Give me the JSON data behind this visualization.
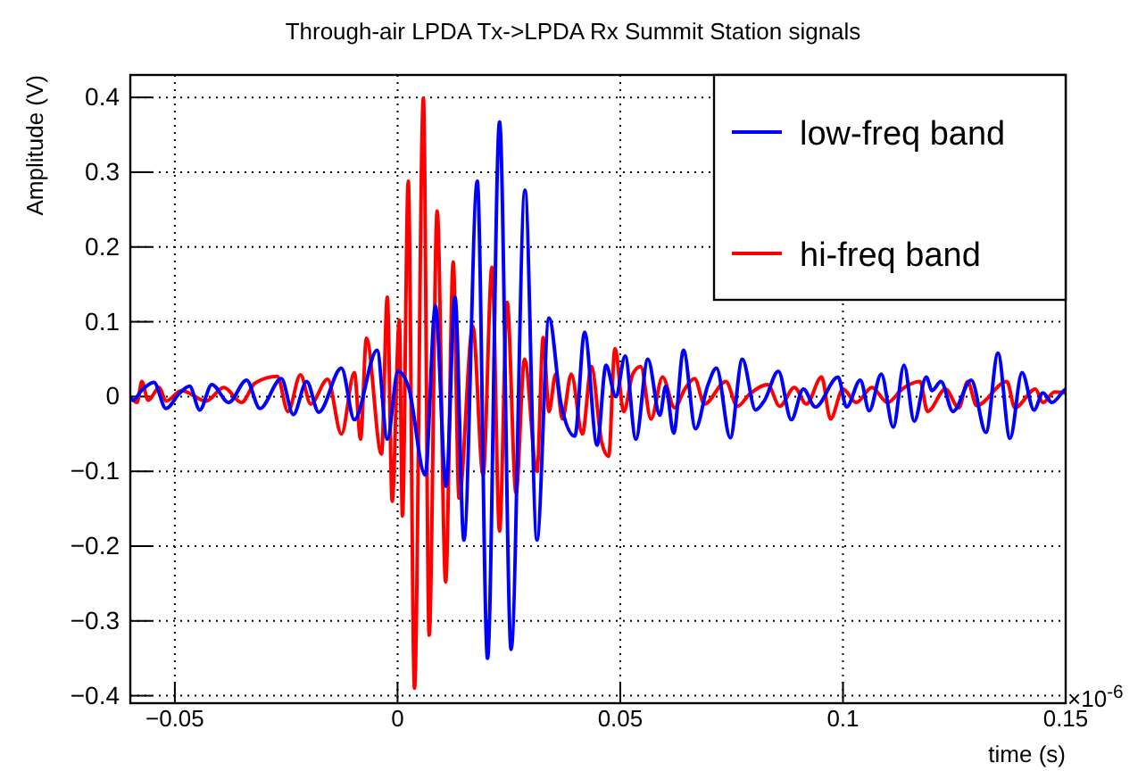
{
  "chart_data": {
    "type": "line",
    "title": "Through-air LPDA Tx->LPDA Rx Summit Station signals",
    "xlabel": "time (s)",
    "ylabel": "Amplitude (V)",
    "annotations": [
      "×10$^{-6}$"
    ],
    "xlim": [
      -0.06,
      0.15
    ],
    "xticks": [
      -0.05,
      0,
      0.05,
      0.1,
      0.15
    ],
    "ylim": [
      -0.41,
      0.43
    ],
    "yticks": [
      -0.4,
      -0.3,
      -0.2,
      -0.1,
      0,
      0.1,
      0.2,
      0.3,
      0.4
    ],
    "grid": true,
    "legend": "top right",
    "line_style": "solid",
    "marker": "none",
    "series": [
      {
        "name": "low-freq band",
        "color": "#0000ff",
        "x": [
          -0.06,
          -0.0594,
          -0.0575,
          -0.0547,
          -0.052,
          -0.049,
          -0.0467,
          -0.0444,
          -0.0417,
          -0.0379,
          -0.0339,
          -0.0309,
          -0.0261,
          -0.0234,
          -0.0204,
          -0.0177,
          -0.0126,
          -0.0097,
          -0.0046,
          -0.0023,
          0.0001,
          0.0025,
          0.0062,
          0.0085,
          0.0109,
          0.0129,
          0.0149,
          0.0179,
          0.0202,
          0.0229,
          0.0255,
          0.0286,
          0.0313,
          0.034,
          0.0367,
          0.0398,
          0.042,
          0.0448,
          0.0468,
          0.049,
          0.0511,
          0.0535,
          0.0562,
          0.0589,
          0.0602,
          0.062,
          0.0642,
          0.0669,
          0.0696,
          0.0716,
          0.0747,
          0.0774,
          0.0804,
          0.0824,
          0.0855,
          0.0884,
          0.0911,
          0.0938,
          0.0989,
          0.1008,
          0.1039,
          0.1059,
          0.1086,
          0.1113,
          0.1137,
          0.116,
          0.1187,
          0.12,
          0.122,
          0.1247,
          0.1288,
          0.1321,
          0.1348,
          0.1375,
          0.1402,
          0.1429,
          0.1449,
          0.1469,
          0.1496,
          0.15
        ],
        "values": [
          0,
          -0.005,
          0.008,
          0.019,
          -0.016,
          0.004,
          0.014,
          -0.018,
          0.016,
          -0.008,
          0.022,
          -0.016,
          0.024,
          -0.024,
          0.02,
          -0.021,
          0.038,
          -0.031,
          0.062,
          -0.057,
          0.034,
          0.012,
          -0.105,
          0.121,
          -0.12,
          0.133,
          -0.192,
          0.288,
          -0.35,
          0.367,
          -0.338,
          0.276,
          -0.192,
          0.105,
          -0.01,
          -0.053,
          0.086,
          -0.065,
          0.042,
          0,
          0.054,
          -0.057,
          0.05,
          -0.025,
          0.014,
          -0.049,
          0.062,
          -0.043,
          0.014,
          0.038,
          -0.055,
          0.05,
          -0.018,
          -0.005,
          0.034,
          -0.031,
          0.01,
          -0.014,
          0.026,
          -0.014,
          0.022,
          -0.019,
          0.03,
          -0.041,
          0.042,
          -0.033,
          0.026,
          0.008,
          0.02,
          -0.02,
          0.022,
          -0.048,
          0.058,
          -0.056,
          0.032,
          -0.018,
          0.005,
          -0.008,
          0.008,
          0.01
        ]
      },
      {
        "name": "hi-freq band",
        "color": "#ff0000",
        "x": [
          -0.06,
          -0.0585,
          -0.0574,
          -0.056,
          -0.0535,
          -0.052,
          -0.0485,
          -0.043,
          -0.039,
          -0.035,
          -0.032,
          -0.027,
          -0.0246,
          -0.0218,
          -0.0195,
          -0.0157,
          -0.0126,
          -0.0097,
          -0.0083,
          -0.007,
          -0.0036,
          -0.0023,
          -0.0012,
          0.0004,
          0.0011,
          0.0024,
          0.0038,
          0.0058,
          0.0071,
          0.0089,
          0.0108,
          0.0125,
          0.0138,
          0.0169,
          0.0192,
          0.0212,
          0.0229,
          0.0246,
          0.0266,
          0.0285,
          0.0313,
          0.0327,
          0.034,
          0.0355,
          0.037,
          0.039,
          0.0415,
          0.0435,
          0.0458,
          0.0474,
          0.0488,
          0.0508,
          0.0528,
          0.0546,
          0.0569,
          0.0595,
          0.0622,
          0.0645,
          0.0667,
          0.0689,
          0.0737,
          0.0763,
          0.079,
          0.0831,
          0.0858,
          0.0891,
          0.0918,
          0.0952,
          0.0972,
          0.1,
          0.103,
          0.1065,
          0.11,
          0.1133,
          0.1173,
          0.119,
          0.123,
          0.126,
          0.128,
          0.13,
          0.1368,
          0.1386,
          0.1432,
          0.1449,
          0.1475,
          0.15
        ],
        "values": [
          0,
          -0.008,
          0.02,
          -0.005,
          0.012,
          -0.006,
          0.008,
          -0.006,
          0.012,
          -0.008,
          0.018,
          0.027,
          -0.02,
          0.029,
          -0.01,
          0.023,
          -0.05,
          0.032,
          -0.057,
          0.078,
          -0.077,
          0.133,
          -0.14,
          0.102,
          -0.16,
          0.288,
          -0.39,
          0.399,
          -0.319,
          0.248,
          -0.248,
          0.18,
          -0.136,
          0.094,
          -0.105,
          0.173,
          -0.18,
          0.126,
          -0.129,
          0.05,
          -0.1,
          0.079,
          -0.02,
          0.03,
          -0.03,
          0.03,
          -0.05,
          0.04,
          -0.06,
          -0.08,
          0.064,
          -0.02,
          0.03,
          0.04,
          -0.03,
          0.026,
          -0.015,
          0.01,
          0.024,
          -0.01,
          0.02,
          -0.013,
          0.003,
          0.016,
          -0.013,
          0.012,
          -0.01,
          0.026,
          -0.03,
          0.01,
          -0.008,
          0.012,
          -0.008,
          0.01,
          0.02,
          -0.02,
          0.01,
          -0.015,
          0.02,
          -0.012,
          0.02,
          -0.015,
          0.01,
          -0.008,
          0.006,
          0.005
        ]
      }
    ]
  }
}
